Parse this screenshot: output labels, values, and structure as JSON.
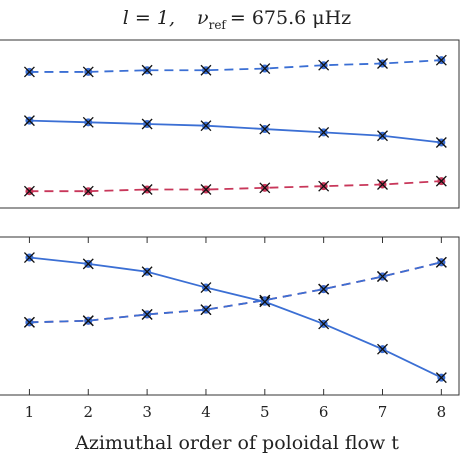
{
  "chart_data": [
    {
      "type": "line",
      "title": {
        "lhs": "l = 1,",
        "nu": "ν",
        "sub": "ref",
        "rhs": "= 675.6 μHz"
      },
      "x": [
        1,
        2,
        3,
        4,
        5,
        6,
        7,
        8
      ],
      "xlim": [
        0.5,
        8.3
      ],
      "ylim": [
        0,
        1
      ],
      "series": [
        {
          "color": "#3b6fd4",
          "dash": true,
          "values": [
            0.81,
            0.81,
            0.82,
            0.82,
            0.83,
            0.85,
            0.86,
            0.88
          ]
        },
        {
          "color": "#3b6fd4",
          "dash": false,
          "values": [
            0.52,
            0.51,
            0.5,
            0.49,
            0.47,
            0.45,
            0.43,
            0.39
          ]
        },
        {
          "color": "#c8375a",
          "dash": true,
          "values": [
            0.1,
            0.1,
            0.11,
            0.11,
            0.12,
            0.13,
            0.14,
            0.16
          ]
        }
      ]
    },
    {
      "type": "line",
      "x": [
        1,
        2,
        3,
        4,
        5,
        6,
        7,
        8
      ],
      "xlim": [
        0.5,
        8.3
      ],
      "ylim": [
        0,
        1
      ],
      "xticks": [
        1,
        2,
        3,
        4,
        5,
        6,
        7,
        8
      ],
      "xlabel": "Azimuthal order of poloidal flow t",
      "series": [
        {
          "color": "#c8375a",
          "dash": true,
          "values": [
            0.46,
            0.47,
            0.51,
            0.54,
            0.6,
            0.67,
            0.75,
            0.84
          ]
        },
        {
          "color": "#3b6fd4",
          "dash": true,
          "values": [
            0.46,
            0.47,
            0.51,
            0.54,
            0.6,
            0.67,
            0.75,
            0.84
          ]
        },
        {
          "color": "#3b6fd4",
          "dash": false,
          "values": [
            0.87,
            0.83,
            0.78,
            0.68,
            0.59,
            0.45,
            0.29,
            0.11
          ]
        }
      ]
    }
  ]
}
